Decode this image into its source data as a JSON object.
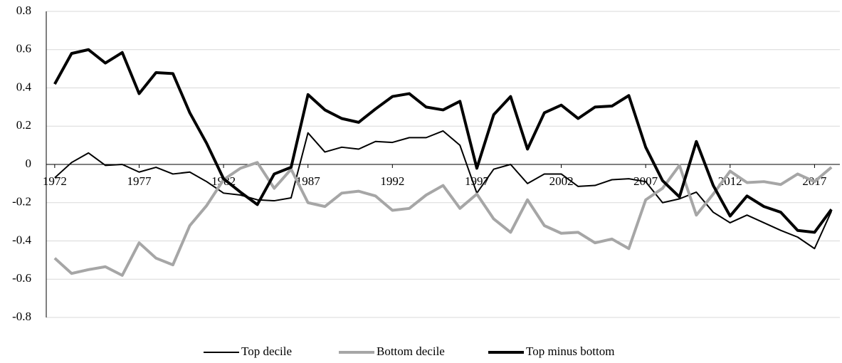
{
  "chart_data": {
    "type": "line",
    "x": [
      1972,
      1973,
      1974,
      1975,
      1976,
      1977,
      1978,
      1979,
      1980,
      1981,
      1982,
      1983,
      1984,
      1985,
      1986,
      1987,
      1988,
      1989,
      1990,
      1991,
      1992,
      1993,
      1994,
      1995,
      1996,
      1997,
      1998,
      1999,
      2000,
      2001,
      2002,
      2003,
      2004,
      2005,
      2006,
      2007,
      2008,
      2009,
      2010,
      2011,
      2012,
      2013,
      2014,
      2015,
      2016,
      2017,
      2018
    ],
    "xlim": [
      1971.5,
      2018.5
    ],
    "xticks": [
      1972,
      1977,
      1982,
      1987,
      1992,
      1997,
      2002,
      2007,
      2012,
      2017
    ],
    "ylim": [
      -0.8,
      0.8
    ],
    "yticks": [
      -0.8,
      -0.6,
      -0.4,
      -0.2,
      0,
      0.2,
      0.4,
      0.6,
      0.8
    ],
    "grid": true,
    "legend": "bottom",
    "series": [
      {
        "name": "Top decile",
        "color": "#000000",
        "width": 2,
        "values": [
          -0.07,
          0.01,
          0.06,
          -0.005,
          0,
          -0.04,
          -0.015,
          -0.05,
          -0.04,
          -0.09,
          -0.15,
          -0.16,
          -0.185,
          -0.19,
          -0.175,
          0.165,
          0.065,
          0.09,
          0.08,
          0.12,
          0.115,
          0.14,
          0.14,
          0.175,
          0.1,
          -0.15,
          -0.025,
          0,
          -0.1,
          -0.05,
          -0.05,
          -0.115,
          -0.11,
          -0.08,
          -0.075,
          -0.09,
          -0.2,
          -0.18,
          -0.145,
          -0.25,
          -0.305,
          -0.265,
          -0.305,
          -0.345,
          -0.38,
          -0.44,
          -0.245
        ]
      },
      {
        "name": "Bottom decile",
        "color": "#a6a6a6",
        "width": 4,
        "values": [
          -0.49,
          -0.57,
          -0.55,
          -0.535,
          -0.58,
          -0.41,
          -0.49,
          -0.525,
          -0.32,
          -0.215,
          -0.08,
          -0.02,
          0.01,
          -0.125,
          -0.025,
          -0.2,
          -0.22,
          -0.15,
          -0.14,
          -0.165,
          -0.24,
          -0.23,
          -0.16,
          -0.11,
          -0.23,
          -0.155,
          -0.285,
          -0.355,
          -0.185,
          -0.32,
          -0.36,
          -0.355,
          -0.41,
          -0.39,
          -0.44,
          -0.185,
          -0.125,
          -0.005,
          -0.265,
          -0.155,
          -0.035,
          -0.095,
          -0.09,
          -0.105,
          -0.05,
          -0.09,
          -0.015
        ]
      },
      {
        "name": "Top minus bottom",
        "color": "#000000",
        "width": 4,
        "values": [
          0.42,
          0.58,
          0.6,
          0.53,
          0.585,
          0.37,
          0.48,
          0.475,
          0.27,
          0.11,
          -0.075,
          -0.145,
          -0.21,
          -0.05,
          -0.015,
          0.365,
          0.285,
          0.24,
          0.22,
          0.29,
          0.355,
          0.37,
          0.3,
          0.285,
          0.33,
          -0.02,
          0.26,
          0.355,
          0.08,
          0.27,
          0.31,
          0.24,
          0.3,
          0.305,
          0.36,
          0.09,
          -0.085,
          -0.17,
          0.12,
          -0.11,
          -0.27,
          -0.165,
          -0.22,
          -0.25,
          -0.345,
          -0.355,
          -0.235
        ]
      }
    ]
  }
}
